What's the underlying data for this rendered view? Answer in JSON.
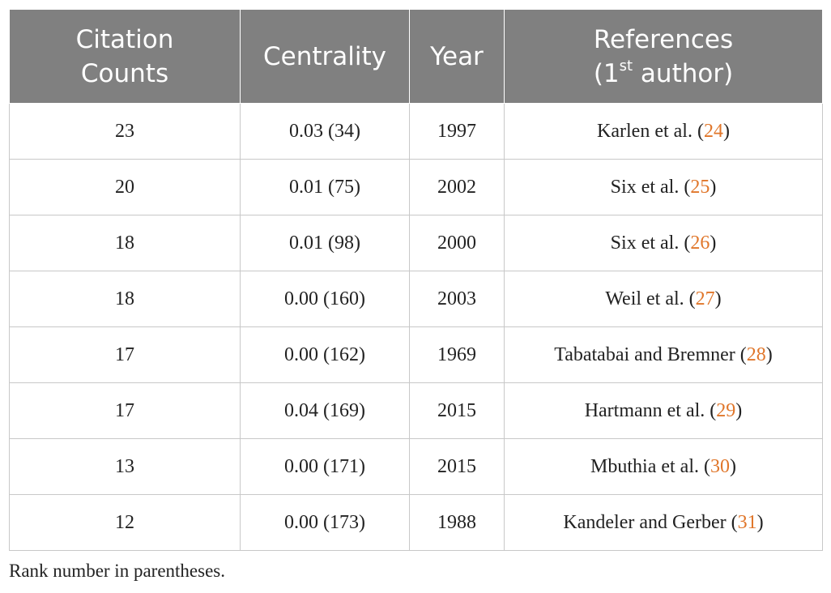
{
  "table": {
    "header": [
      "Citation Counts",
      "Centrality",
      "Year",
      {
        "line1": "References",
        "pre": "(1",
        "sup": "st",
        "post": " author)"
      }
    ],
    "rows": [
      [
        23,
        "0.03 (34)",
        1997,
        {
          "pre": "Karlen et al. (",
          "ref": "24",
          "post": ")"
        }
      ],
      [
        20,
        "0.01 (75)",
        2002,
        {
          "pre": "Six et al. (",
          "ref": "25",
          "post": ")"
        }
      ],
      [
        18,
        "0.01 (98)",
        2000,
        {
          "pre": "Six et al. (",
          "ref": "26",
          "post": ")"
        }
      ],
      [
        18,
        "0.00 (160)",
        2003,
        {
          "pre": "Weil et al. (",
          "ref": "27",
          "post": ")"
        }
      ],
      [
        17,
        "0.00 (162)",
        1969,
        {
          "pre": "Tabatabai and Bremner (",
          "ref": "28",
          "post": ")"
        }
      ],
      [
        17,
        "0.04 (169)",
        2015,
        {
          "pre": "Hartmann et al. (",
          "ref": "29",
          "post": ")"
        }
      ],
      [
        13,
        "0.00 (171)",
        2015,
        {
          "pre": "Mbuthia et al. (",
          "ref": "30",
          "post": ")"
        }
      ],
      [
        12,
        "0.00 (173)",
        1988,
        {
          "pre": "Kandeler and Gerber (",
          "ref": "31",
          "post": ")"
        }
      ]
    ]
  },
  "footnote": "Rank number in parentheses."
}
